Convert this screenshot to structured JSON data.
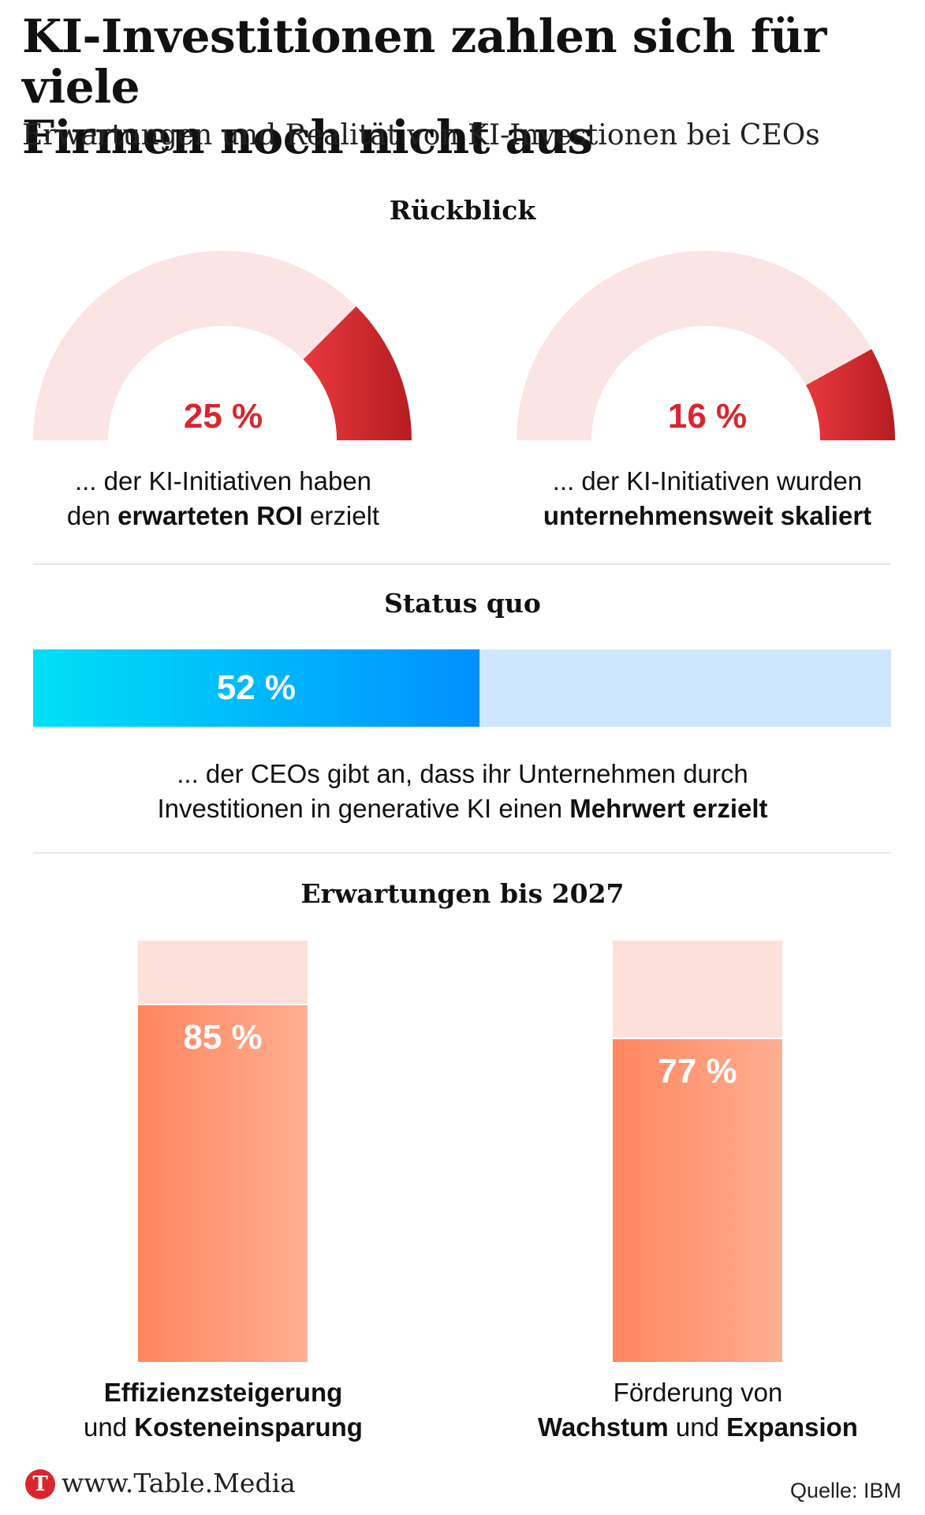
{
  "title_line1": "KI-Investitionen zahlen sich für viele",
  "title_line2": "Firmen noch nicht aus",
  "subtitle": "Erwartungen und Realität von KI-Investionen bei CEOs",
  "colors": {
    "gauge_accent": "#d9262c",
    "gauge_background": "#fbe4e4",
    "status_fill_start": "#00e0f5",
    "status_fill_end": "#0090ff",
    "status_background": "#cfe6ff",
    "expectation_fill": "#ff8660",
    "expectation_background": "#fde0da"
  },
  "sections": {
    "rueckblick": "Rückblick",
    "status_quo": "Status quo",
    "erwartungen": "Erwartungen bis 2027"
  },
  "gauges": [
    {
      "label": "25 %",
      "caption": {
        "l1": "... der KI-Initiativen haben",
        "l2_pre": "den ",
        "l2_bold": "erwarteten ROI",
        "l2_post": " erzielt"
      }
    },
    {
      "label": "16 %",
      "caption": {
        "l1": "... der KI-Initiativen wurden",
        "l2_bold": "unternehmensweit skaliert"
      }
    }
  ],
  "status": {
    "label": "52 %",
    "caption": {
      "l1": "... der CEOs gibt an, dass ihr Unternehmen durch",
      "l2_pre": "Investitionen in generative KI einen ",
      "l2_bold": "Mehrwert erzielt"
    }
  },
  "expectations": [
    {
      "label": "85 %",
      "caption": {
        "l1_bold": "Effizienzsteigerung",
        "l2_pre": "und ",
        "l2_bold": "Kosteneinsparung"
      }
    },
    {
      "label": "77 %",
      "caption": {
        "l1": "Förderung von",
        "l2_bold": "Wachstum",
        "l2_mid": " und ",
        "l2_bold2": "Expansion"
      }
    }
  ],
  "chart_data": [
    {
      "type": "gauge",
      "section": "Rückblick",
      "value": 25,
      "unit": "%",
      "max": 100
    },
    {
      "type": "gauge",
      "section": "Rückblick",
      "value": 16,
      "unit": "%",
      "max": 100
    },
    {
      "type": "bar",
      "section": "Status quo",
      "orientation": "horizontal",
      "value": 52,
      "unit": "%",
      "max": 100
    },
    {
      "type": "bar",
      "section": "Erwartungen bis 2027",
      "orientation": "vertical",
      "categories": [
        "Effizienzsteigerung und Kosteneinsparung",
        "Förderung von Wachstum und Expansion"
      ],
      "values": [
        85,
        77
      ],
      "unit": "%",
      "ylim": [
        0,
        100
      ]
    }
  ],
  "footer": {
    "logo_letter": "T",
    "brand": "www.Table.Media",
    "source": "Quelle: IBM"
  }
}
